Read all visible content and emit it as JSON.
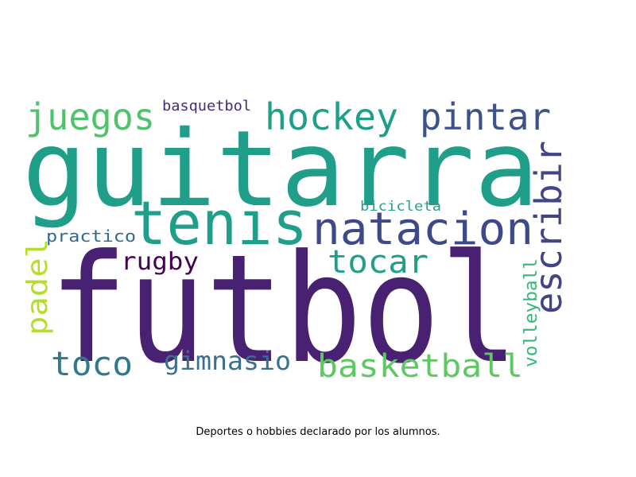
{
  "caption": "Deportes o hobbies declarado por los alumnos.",
  "words": [
    {
      "text": "guitarra",
      "color": "#1f9e89",
      "vertical": false
    },
    {
      "text": "futbol",
      "color": "#482173",
      "vertical": false
    },
    {
      "text": "tenis",
      "color": "#1f9e89",
      "vertical": false
    },
    {
      "text": "natacion",
      "color": "#3e4989",
      "vertical": false
    },
    {
      "text": "juegos",
      "color": "#4ec36b",
      "vertical": false
    },
    {
      "text": "hockey",
      "color": "#1f9e89",
      "vertical": false
    },
    {
      "text": "pintar",
      "color": "#3b528b",
      "vertical": false
    },
    {
      "text": "escribir",
      "color": "#414487",
      "vertical": true
    },
    {
      "text": "basquetbol",
      "color": "#482878",
      "vertical": false
    },
    {
      "text": "bicicleta",
      "color": "#2a9f88",
      "vertical": false
    },
    {
      "text": "practico",
      "color": "#31688e",
      "vertical": false
    },
    {
      "text": "rugby",
      "color": "#440154",
      "vertical": false
    },
    {
      "text": "tocar",
      "color": "#1f9e89",
      "vertical": false
    },
    {
      "text": "padel",
      "color": "#b5de2b",
      "vertical": true
    },
    {
      "text": "volleyball",
      "color": "#35b779",
      "vertical": true
    },
    {
      "text": "toco",
      "color": "#31788e",
      "vertical": false
    },
    {
      "text": "gimnasio",
      "color": "#3b6f8e",
      "vertical": false
    },
    {
      "text": "basketball",
      "color": "#5ec962",
      "vertical": false
    }
  ]
}
